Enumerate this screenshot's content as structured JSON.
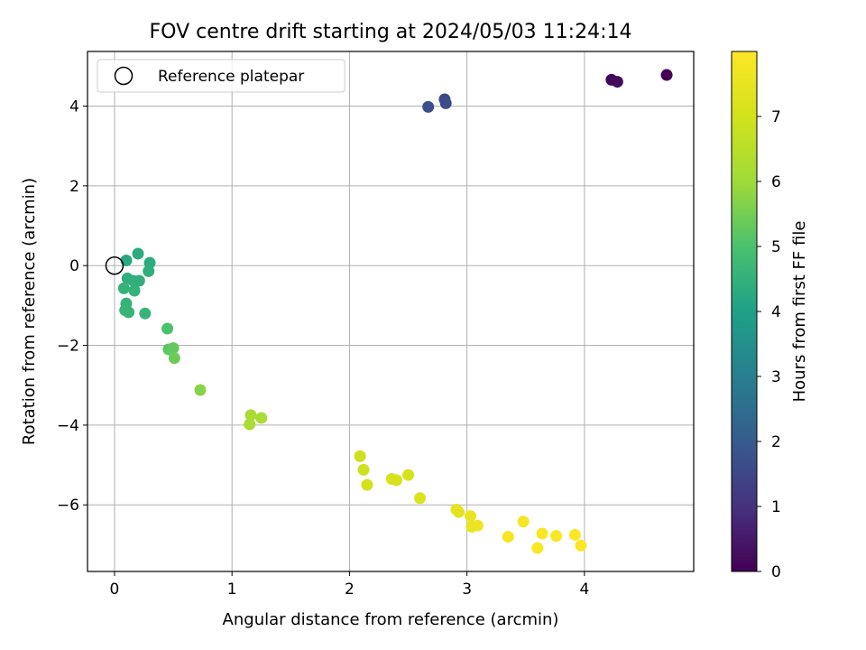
{
  "chart_data": {
    "type": "scatter",
    "title": "FOV centre drift starting at 2024/05/03 11:24:14",
    "xlabel": "Angular distance from reference (arcmin)",
    "ylabel": "Rotation from reference (arcmin)",
    "xlim": [
      -0.23,
      4.93
    ],
    "ylim": [
      -7.67,
      5.37
    ],
    "xticks": [
      0,
      1,
      2,
      3,
      4
    ],
    "yticks": [
      -6,
      -4,
      -2,
      0,
      2,
      4
    ],
    "grid": true,
    "legend": {
      "placement": "top-left",
      "entries": [
        "Reference platepar"
      ]
    },
    "reference_point": {
      "x": 0,
      "y": 0,
      "label": "Reference platepar"
    },
    "colorbar": {
      "label": "Hours from first FF file",
      "colormap": "viridis",
      "range": [
        0,
        8
      ],
      "ticks": [
        0,
        1,
        2,
        3,
        4,
        5,
        6,
        7
      ]
    },
    "points": [
      {
        "x": 4.7,
        "y": 4.78,
        "hours": 0.0
      },
      {
        "x": 4.23,
        "y": 4.66,
        "hours": 0.1
      },
      {
        "x": 4.28,
        "y": 4.61,
        "hours": 0.2
      },
      {
        "x": 2.81,
        "y": 4.17,
        "hours": 1.5
      },
      {
        "x": 2.82,
        "y": 4.07,
        "hours": 1.6
      },
      {
        "x": 2.67,
        "y": 3.98,
        "hours": 1.7
      },
      {
        "x": 0.1,
        "y": 0.13,
        "hours": 4.2
      },
      {
        "x": 0.2,
        "y": 0.3,
        "hours": 4.3
      },
      {
        "x": 0.3,
        "y": 0.07,
        "hours": 4.3
      },
      {
        "x": 0.29,
        "y": -0.14,
        "hours": 4.4
      },
      {
        "x": 0.11,
        "y": -0.32,
        "hours": 4.4
      },
      {
        "x": 0.16,
        "y": -0.38,
        "hours": 4.4
      },
      {
        "x": 0.21,
        "y": -0.38,
        "hours": 4.4
      },
      {
        "x": 0.08,
        "y": -0.57,
        "hours": 4.5
      },
      {
        "x": 0.17,
        "y": -0.63,
        "hours": 4.5
      },
      {
        "x": 0.1,
        "y": -0.95,
        "hours": 4.5
      },
      {
        "x": 0.09,
        "y": -1.12,
        "hours": 4.6
      },
      {
        "x": 0.12,
        "y": -1.17,
        "hours": 4.6
      },
      {
        "x": 0.26,
        "y": -1.2,
        "hours": 4.6
      },
      {
        "x": 0.45,
        "y": -1.58,
        "hours": 5.0
      },
      {
        "x": 0.46,
        "y": -2.1,
        "hours": 5.2
      },
      {
        "x": 0.5,
        "y": -2.07,
        "hours": 5.3
      },
      {
        "x": 0.51,
        "y": -2.32,
        "hours": 5.4
      },
      {
        "x": 0.73,
        "y": -3.12,
        "hours": 5.7
      },
      {
        "x": 1.16,
        "y": -3.75,
        "hours": 6.2
      },
      {
        "x": 1.25,
        "y": -3.82,
        "hours": 6.2
      },
      {
        "x": 1.15,
        "y": -3.98,
        "hours": 6.2
      },
      {
        "x": 2.09,
        "y": -4.78,
        "hours": 6.9
      },
      {
        "x": 2.12,
        "y": -5.12,
        "hours": 6.9
      },
      {
        "x": 2.15,
        "y": -5.5,
        "hours": 7.0
      },
      {
        "x": 2.36,
        "y": -5.35,
        "hours": 7.1
      },
      {
        "x": 2.4,
        "y": -5.38,
        "hours": 7.1
      },
      {
        "x": 2.5,
        "y": -5.25,
        "hours": 7.1
      },
      {
        "x": 2.6,
        "y": -5.83,
        "hours": 7.2
      },
      {
        "x": 2.91,
        "y": -6.12,
        "hours": 7.4
      },
      {
        "x": 2.93,
        "y": -6.18,
        "hours": 7.4
      },
      {
        "x": 3.03,
        "y": -6.28,
        "hours": 7.5
      },
      {
        "x": 3.04,
        "y": -6.55,
        "hours": 7.5
      },
      {
        "x": 3.09,
        "y": -6.52,
        "hours": 7.6
      },
      {
        "x": 3.48,
        "y": -6.42,
        "hours": 7.8
      },
      {
        "x": 3.35,
        "y": -6.8,
        "hours": 7.8
      },
      {
        "x": 3.6,
        "y": -7.08,
        "hours": 7.9
      },
      {
        "x": 3.64,
        "y": -6.72,
        "hours": 7.9
      },
      {
        "x": 3.76,
        "y": -6.78,
        "hours": 7.9
      },
      {
        "x": 3.92,
        "y": -6.75,
        "hours": 8.0
      },
      {
        "x": 3.97,
        "y": -7.02,
        "hours": 8.0
      }
    ]
  }
}
